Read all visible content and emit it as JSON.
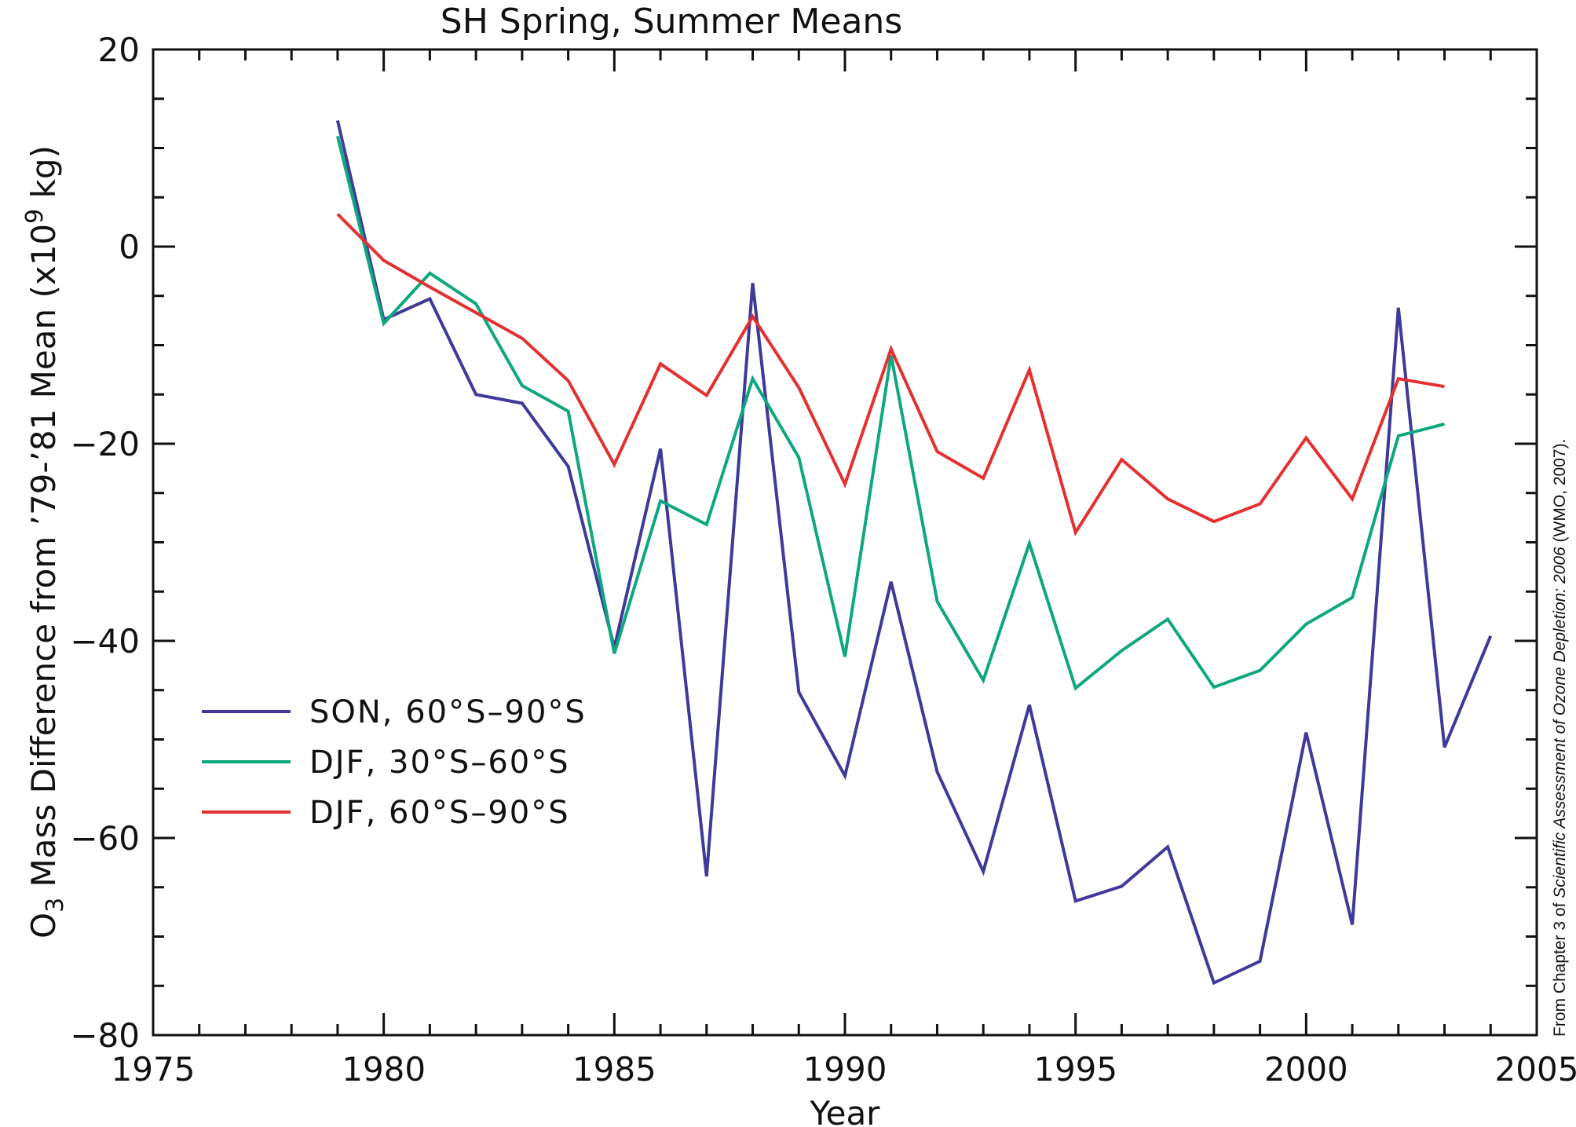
{
  "chart_data": {
    "type": "line",
    "title": "SH Spring, Summer Means",
    "xlabel": "Year",
    "ylabel": {
      "prefix": "O",
      "subscript": "3",
      "main": " Mass Difference from ’79-’81 Mean (x10",
      "superscript": "9",
      "suffix": " kg)"
    },
    "xlim": [
      1975,
      2005
    ],
    "ylim": [
      -80,
      20
    ],
    "xticks": [
      1975,
      1980,
      1985,
      1990,
      1995,
      2000,
      2005
    ],
    "yticks": [
      -80,
      -60,
      -40,
      -20,
      0,
      20
    ],
    "ytick_labels": [
      "−80",
      "−60",
      "−40",
      "−20",
      "0",
      "20"
    ],
    "grid": false,
    "legend_position": "lower-left",
    "series": [
      {
        "name": "SON, 60°S–90°S",
        "color": "#3f3a9a",
        "x": [
          1979,
          1980,
          1981,
          1982,
          1983,
          1984,
          1985,
          1986,
          1987,
          1988,
          1989,
          1990,
          1991,
          1992,
          1993,
          1994,
          1995,
          1996,
          1997,
          1998,
          1999,
          2000,
          2001,
          2002,
          2003,
          2004
        ],
        "y": [
          12.8,
          -7.4,
          -5.3,
          -15.0,
          -15.9,
          -22.3,
          -40.7,
          -20.5,
          -63.9,
          -3.7,
          -45.2,
          -53.7,
          -34.0,
          -53.3,
          -63.4,
          -46.5,
          -66.4,
          -64.9,
          -60.9,
          -74.7,
          -72.5,
          -49.3,
          -68.8,
          -6.2,
          -50.8,
          -39.5
        ]
      },
      {
        "name": "DJF, 30°S–60°S",
        "color": "#0fa77f",
        "x": [
          1979,
          1980,
          1981,
          1982,
          1983,
          1984,
          1985,
          1986,
          1987,
          1988,
          1989,
          1990,
          1991,
          1992,
          1993,
          1994,
          1995,
          1996,
          1997,
          1998,
          1999,
          2000,
          2001,
          2002,
          2003
        ],
        "y": [
          11.2,
          -7.8,
          -2.7,
          -5.8,
          -14.1,
          -16.7,
          -41.3,
          -25.8,
          -28.2,
          -13.4,
          -21.4,
          -41.6,
          -11.0,
          -36.0,
          -44.0,
          -30.1,
          -44.8,
          -41.0,
          -37.8,
          -44.7,
          -43.0,
          -38.3,
          -35.6,
          -19.2,
          -18.0
        ]
      },
      {
        "name": "DJF, 60°S–90°S",
        "color": "#e33030",
        "x": [
          1979,
          1980,
          1981,
          1982,
          1983,
          1984,
          1985,
          1986,
          1987,
          1988,
          1989,
          1990,
          1991,
          1992,
          1993,
          1994,
          1995,
          1996,
          1997,
          1998,
          1999,
          2000,
          2001,
          2002,
          2003
        ],
        "y": [
          3.3,
          -1.4,
          -4.1,
          -6.7,
          -9.3,
          -13.6,
          -22.1,
          -11.9,
          -15.1,
          -7.1,
          -14.3,
          -24.1,
          -10.4,
          -20.8,
          -23.5,
          -12.5,
          -29.0,
          -21.6,
          -25.6,
          -27.9,
          -26.1,
          -19.4,
          -25.6,
          -13.4,
          -14.2
        ]
      }
    ],
    "source_note": {
      "prefix": "From Chapter 3 of ",
      "italic": "Scientific Assessment of Ozone Depletion: 2006",
      "suffix": " (WMO, 2007)."
    }
  }
}
